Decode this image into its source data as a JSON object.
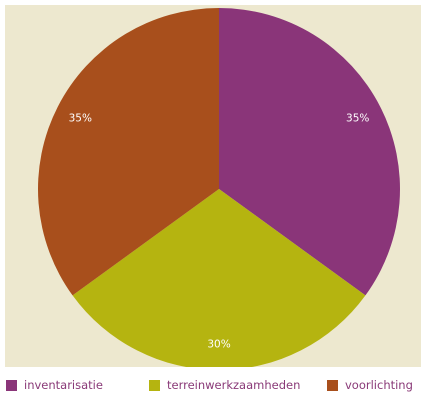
{
  "chart_data": {
    "type": "pie",
    "categories": [
      "inventarisatie",
      "terreinwerkzaamheden",
      "voorlichting"
    ],
    "values": [
      35,
      30,
      35
    ],
    "labels": [
      "35%",
      "30%",
      "35%"
    ],
    "colors": [
      "#8a3579",
      "#b5b410",
      "#a84f1c"
    ],
    "legend": "bottom",
    "background": "#ede8cf"
  }
}
